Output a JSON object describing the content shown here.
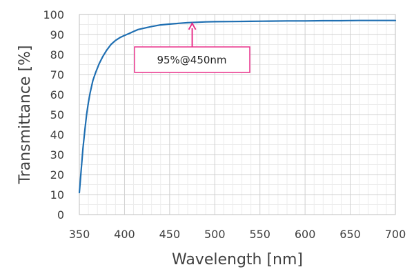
{
  "chart_data": {
    "type": "line",
    "xlabel": "Wavelength [nm]",
    "ylabel": "Transmittance [%]",
    "xlim": [
      350,
      700
    ],
    "ylim": [
      0,
      100
    ],
    "x_ticks": [
      350,
      400,
      450,
      500,
      550,
      600,
      650,
      700
    ],
    "y_ticks": [
      0,
      10,
      20,
      30,
      40,
      50,
      60,
      70,
      80,
      90,
      100
    ],
    "grid": true,
    "series": [
      {
        "color": "#1f6fb2",
        "points": [
          [
            350,
            11
          ],
          [
            352,
            22
          ],
          [
            354,
            33
          ],
          [
            356,
            42
          ],
          [
            358,
            50
          ],
          [
            360,
            56
          ],
          [
            362,
            61
          ],
          [
            365,
            67
          ],
          [
            368,
            71
          ],
          [
            372,
            75.5
          ],
          [
            376,
            79
          ],
          [
            380,
            82
          ],
          [
            385,
            85
          ],
          [
            390,
            87
          ],
          [
            395,
            88.5
          ],
          [
            400,
            89.5
          ],
          [
            405,
            90.5
          ],
          [
            410,
            91.5
          ],
          [
            415,
            92.5
          ],
          [
            420,
            93
          ],
          [
            430,
            94
          ],
          [
            440,
            94.8
          ],
          [
            450,
            95.2
          ],
          [
            460,
            95.6
          ],
          [
            470,
            95.9
          ],
          [
            480,
            96.1
          ],
          [
            490,
            96.3
          ],
          [
            500,
            96.4
          ],
          [
            520,
            96.5
          ],
          [
            540,
            96.6
          ],
          [
            560,
            96.7
          ],
          [
            580,
            96.8
          ],
          [
            600,
            96.8
          ],
          [
            620,
            96.9
          ],
          [
            640,
            96.9
          ],
          [
            660,
            97
          ],
          [
            680,
            97
          ],
          [
            700,
            97
          ]
        ]
      }
    ],
    "annotations": [
      {
        "text": "95%@450nm",
        "x": 475,
        "y": 95.9,
        "color": "#e8318a"
      }
    ]
  }
}
